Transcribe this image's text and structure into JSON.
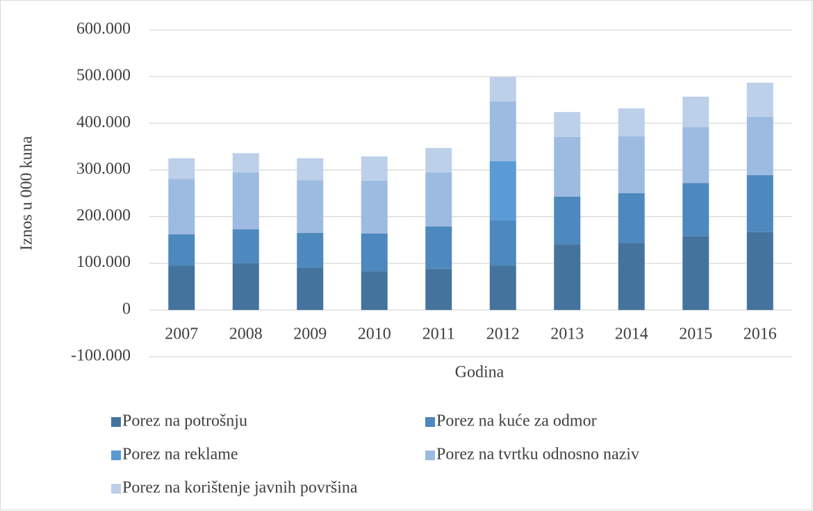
{
  "chart_data": {
    "type": "stacked_bar",
    "y_label": "Iznos u 000 kuna",
    "x_label": "Godina",
    "categories": [
      "2007",
      "2008",
      "2009",
      "2010",
      "2011",
      "2012",
      "2013",
      "2014",
      "2015",
      "2016"
    ],
    "series": [
      {
        "name": "Porez na potrošnju",
        "color": "#44739e",
        "values": [
          95000,
          100000,
          91000,
          83000,
          88000,
          95000,
          141000,
          144000,
          158000,
          167000
        ]
      },
      {
        "name": "Porez na kuće za odmor",
        "color": "#4d88be",
        "values": [
          67000,
          73000,
          74000,
          81000,
          91000,
          97000,
          102000,
          106000,
          114000,
          122000
        ]
      },
      {
        "name": "Porez na reklame",
        "color": "#5b9bd5",
        "values": [
          0,
          0,
          0,
          0,
          0,
          127000,
          0,
          0,
          0,
          0
        ]
      },
      {
        "name": "Porez na tvrtku odnosno naziv",
        "color": "#9dbbe0",
        "values": [
          119000,
          122000,
          113000,
          113000,
          116000,
          128000,
          128000,
          122000,
          120000,
          125000
        ]
      },
      {
        "name": "Porez na korištenje javnih površina",
        "color": "#bdd0ea",
        "values": [
          44000,
          41000,
          47000,
          52000,
          52000,
          52000,
          53000,
          60000,
          65000,
          73000
        ]
      }
    ],
    "ylim": [
      -100000,
      600000
    ],
    "yticks": [
      {
        "value": -100000,
        "label": "-100.000"
      },
      0,
      {
        "value": 100000,
        "label": "100.000"
      },
      {
        "value": 200000,
        "label": "200.000"
      },
      {
        "value": 300000,
        "label": "300.000"
      },
      {
        "value": 400000,
        "label": "400.000"
      },
      {
        "value": 500000,
        "label": "500.000"
      },
      {
        "value": 600000,
        "label": "600.000"
      }
    ],
    "grid": true,
    "legend": "bottom"
  }
}
